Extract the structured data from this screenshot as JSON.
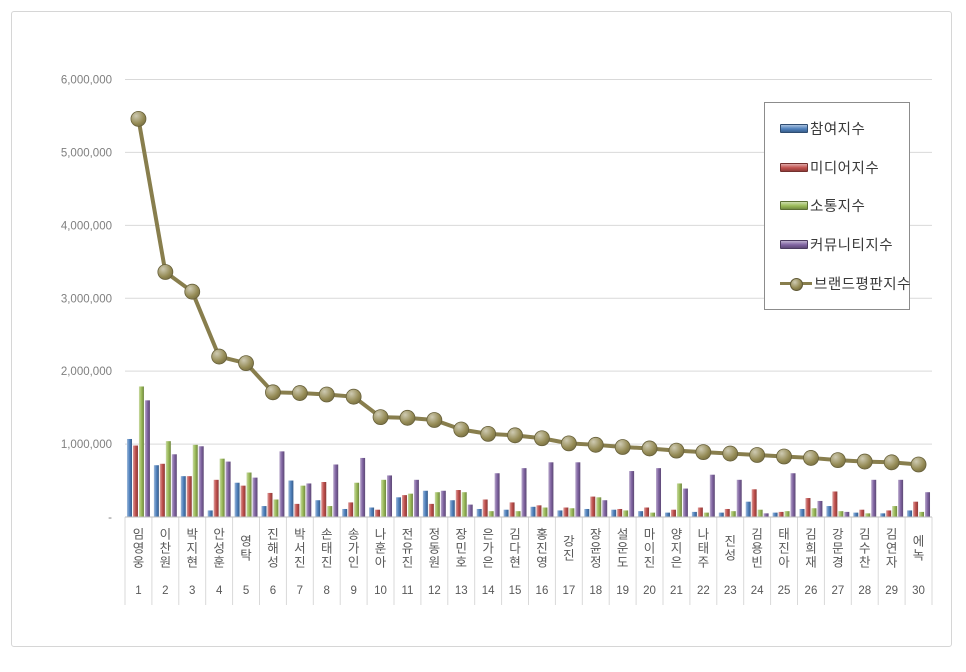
{
  "chart_data": {
    "type": "bar",
    "title": "",
    "categories": [
      "임영웅",
      "이찬원",
      "박지현",
      "안성훈",
      "영탁",
      "진해성",
      "박서진",
      "손태진",
      "송가인",
      "나훈아",
      "전유진",
      "정동원",
      "장민호",
      "은가은",
      "김다현",
      "홍진영",
      "강진",
      "장윤정",
      "설운도",
      "마이진",
      "양지은",
      "나태주",
      "진성",
      "김용빈",
      "태진아",
      "김희재",
      "강문경",
      "김수찬",
      "김연자",
      "에녹"
    ],
    "category_ranks": [
      "1",
      "2",
      "3",
      "4",
      "5",
      "6",
      "7",
      "8",
      "9",
      "10",
      "11",
      "12",
      "13",
      "14",
      "15",
      "16",
      "17",
      "18",
      "19",
      "20",
      "21",
      "22",
      "23",
      "24",
      "25",
      "26",
      "27",
      "28",
      "29",
      "30"
    ],
    "series": [
      {
        "name": "참여지수",
        "type": "bar",
        "color": "#4F81BD",
        "values": [
          1070000,
          710000,
          560000,
          90000,
          470000,
          150000,
          500000,
          230000,
          110000,
          130000,
          270000,
          360000,
          230000,
          110000,
          100000,
          140000,
          90000,
          110000,
          100000,
          80000,
          60000,
          70000,
          60000,
          210000,
          60000,
          110000,
          150000,
          60000,
          50000,
          90000
        ]
      },
      {
        "name": "미디어지수",
        "type": "bar",
        "color": "#C0504D",
        "values": [
          980000,
          730000,
          560000,
          510000,
          430000,
          330000,
          180000,
          480000,
          200000,
          100000,
          300000,
          180000,
          370000,
          240000,
          200000,
          160000,
          130000,
          280000,
          110000,
          130000,
          100000,
          130000,
          110000,
          380000,
          70000,
          260000,
          350000,
          100000,
          90000,
          210000
        ]
      },
      {
        "name": "소통지수",
        "type": "bar",
        "color": "#9BBB59",
        "values": [
          1790000,
          1040000,
          990000,
          800000,
          610000,
          240000,
          430000,
          150000,
          470000,
          510000,
          320000,
          340000,
          340000,
          80000,
          80000,
          130000,
          120000,
          270000,
          90000,
          60000,
          460000,
          60000,
          80000,
          100000,
          80000,
          120000,
          80000,
          50000,
          150000,
          70000
        ]
      },
      {
        "name": "커뮤니티지수",
        "type": "bar",
        "color": "#8064A2",
        "values": [
          1600000,
          860000,
          970000,
          760000,
          540000,
          900000,
          460000,
          720000,
          810000,
          570000,
          510000,
          360000,
          170000,
          600000,
          670000,
          750000,
          750000,
          230000,
          630000,
          670000,
          390000,
          580000,
          510000,
          50000,
          600000,
          220000,
          70000,
          510000,
          510000,
          340000
        ]
      },
      {
        "name": "브랜드평판지수",
        "type": "line",
        "color": "#948A54",
        "values": [
          5460000,
          3360000,
          3090000,
          2200000,
          2110000,
          1710000,
          1700000,
          1680000,
          1650000,
          1370000,
          1360000,
          1330000,
          1200000,
          1140000,
          1120000,
          1080000,
          1010000,
          990000,
          960000,
          940000,
          910000,
          890000,
          870000,
          850000,
          830000,
          810000,
          780000,
          760000,
          750000,
          720000
        ]
      }
    ],
    "y_axis": {
      "min": 0,
      "max": 6000000,
      "tick_interval": 1000000,
      "tick_labels": [
        "-",
        "1,000,000",
        "2,000,000",
        "3,000,000",
        "4,000,000",
        "5,000,000",
        "6,000,000"
      ]
    },
    "legend_position": "top-right",
    "grid": "horizontal-gridlines",
    "colors": {
      "gridline": "#d9d9d9",
      "axis_line": "#bfbfbf",
      "tick_label": "#7f7f7f",
      "category_label": "#595959",
      "frame_border": "#d6d6d6"
    }
  }
}
